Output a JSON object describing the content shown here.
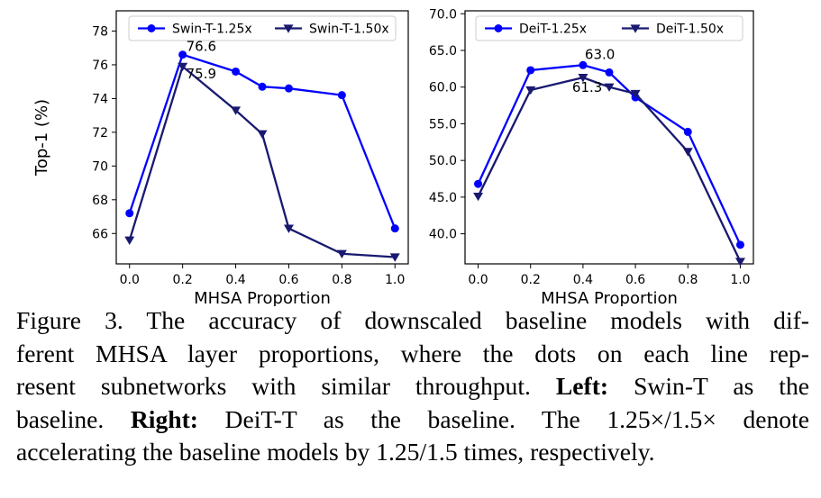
{
  "chart_data": [
    {
      "type": "line",
      "x": [
        0.0,
        0.2,
        0.4,
        0.5,
        0.6,
        0.8,
        1.0
      ],
      "xlabel": "MHSA Proportion",
      "ylabel": "Top-1 (%)",
      "xticks": [
        "0.0",
        "0.2",
        "0.4",
        "0.6",
        "0.8",
        "1.0"
      ],
      "yticks": [
        "66",
        "68",
        "70",
        "72",
        "74",
        "76",
        "78"
      ],
      "ylim": [
        64.2,
        79.2
      ],
      "legend_position": "top",
      "series": [
        {
          "name": "Swin-T-1.25x",
          "color": "#0000ff",
          "marker": "circle",
          "values": [
            67.2,
            76.6,
            75.6,
            74.7,
            74.6,
            74.2,
            66.3
          ]
        },
        {
          "name": "Swin-T-1.50x",
          "color": "#191970",
          "marker": "triangle-down",
          "values": [
            65.6,
            75.9,
            73.3,
            71.9,
            66.3,
            64.8,
            64.6
          ]
        }
      ],
      "annotations": [
        {
          "text": "76.6",
          "x": 0.2,
          "y": 76.6
        },
        {
          "text": "75.9",
          "x": 0.2,
          "y": 75.9
        }
      ]
    },
    {
      "type": "line",
      "x": [
        0.0,
        0.2,
        0.4,
        0.5,
        0.6,
        0.8,
        1.0
      ],
      "xlabel": "MHSA Proportion",
      "ylabel": "",
      "xticks": [
        "0.0",
        "0.2",
        "0.4",
        "0.6",
        "0.8",
        "1.0"
      ],
      "yticks": [
        "40.0",
        "45.0",
        "50.0",
        "55.0",
        "60.0",
        "65.0",
        "70.0"
      ],
      "ylim": [
        35.9,
        70.4
      ],
      "legend_position": "top",
      "series": [
        {
          "name": "DeiT-1.25x",
          "color": "#0000ff",
          "marker": "circle",
          "values": [
            46.8,
            62.3,
            63.0,
            62.0,
            58.6,
            53.9,
            38.5
          ]
        },
        {
          "name": "DeiT-1.50x",
          "color": "#191970",
          "marker": "triangle-down",
          "values": [
            45.1,
            59.6,
            61.3,
            60.0,
            59.1,
            51.2,
            36.2
          ]
        }
      ],
      "annotations": [
        {
          "text": "63.0",
          "x": 0.4,
          "y": 63.0
        },
        {
          "text": "61.3",
          "x": 0.4,
          "y": 61.3
        }
      ]
    }
  ],
  "caption": {
    "lines": [
      [
        {
          "t": "Figure 3.  The accuracy of downscaled baseline models with dif-"
        }
      ],
      [
        {
          "t": "ferent MHSA layer proportions, where the dots on each line rep-"
        }
      ],
      [
        {
          "t": "resent subnetworks with similar throughput. "
        },
        {
          "t": "Left:",
          "b": true
        },
        {
          "t": " Swin-T as the"
        }
      ],
      [
        {
          "t": "baseline. "
        },
        {
          "t": "Right:",
          "b": true
        },
        {
          "t": " DeiT-T as the baseline. The 1.25×/1.5× denote"
        }
      ],
      [
        {
          "t": "accelerating the baseline models by 1.25/1.5 times, respectively."
        }
      ]
    ]
  }
}
